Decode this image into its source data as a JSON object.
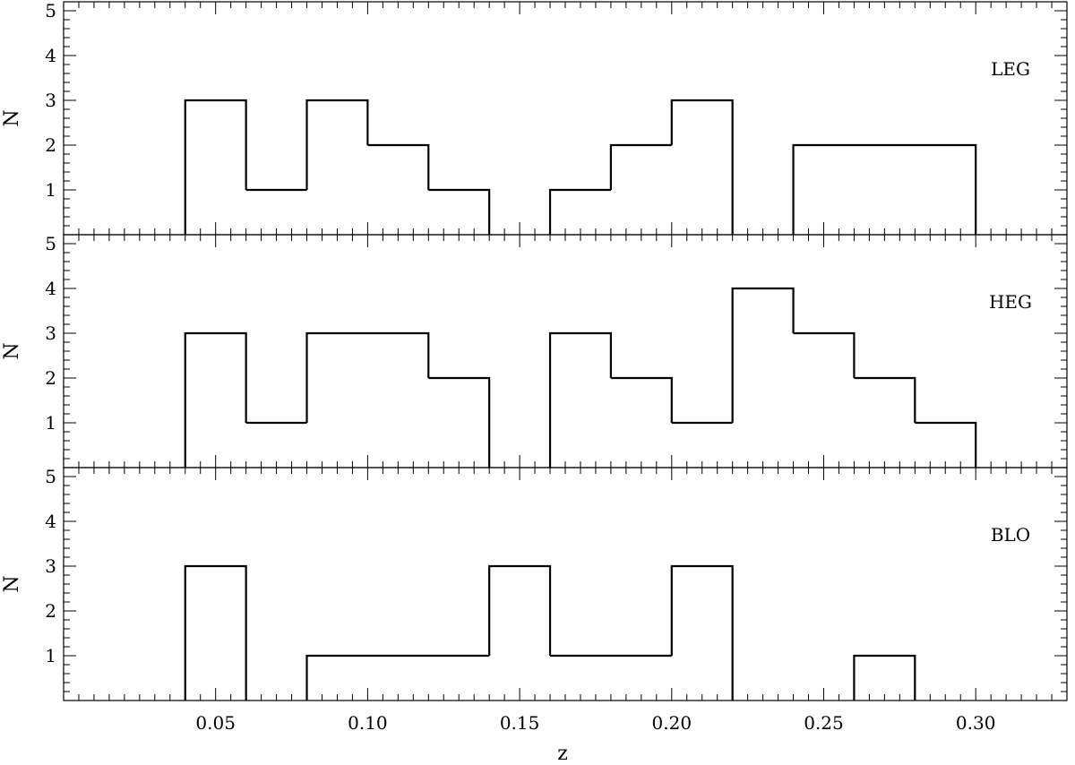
{
  "chart_data": {
    "type": "bar",
    "xlabel": "z",
    "ylabel": "N",
    "xlim": [
      0.0,
      0.33
    ],
    "ylim": [
      0,
      5.2
    ],
    "x_ticks": [
      "0.05",
      "0.10",
      "0.15",
      "0.20",
      "0.25",
      "0.30"
    ],
    "y_ticks": [
      "1",
      "2",
      "3",
      "4",
      "5"
    ],
    "bin_edges": [
      0.04,
      0.06,
      0.08,
      0.1,
      0.12,
      0.14,
      0.16,
      0.18,
      0.2,
      0.22,
      0.24,
      0.26,
      0.28,
      0.3
    ],
    "panels": [
      {
        "name": "LEG",
        "values": [
          3,
          1,
          3,
          2,
          1,
          0,
          1,
          2,
          3,
          0,
          2,
          2,
          2
        ]
      },
      {
        "name": "HEG",
        "values": [
          3,
          1,
          3,
          3,
          2,
          0,
          3,
          2,
          1,
          4,
          3,
          2,
          1
        ]
      },
      {
        "name": "BLO",
        "values": [
          3,
          0,
          1,
          1,
          1,
          3,
          1,
          1,
          3,
          0,
          0,
          1,
          0
        ]
      }
    ]
  }
}
